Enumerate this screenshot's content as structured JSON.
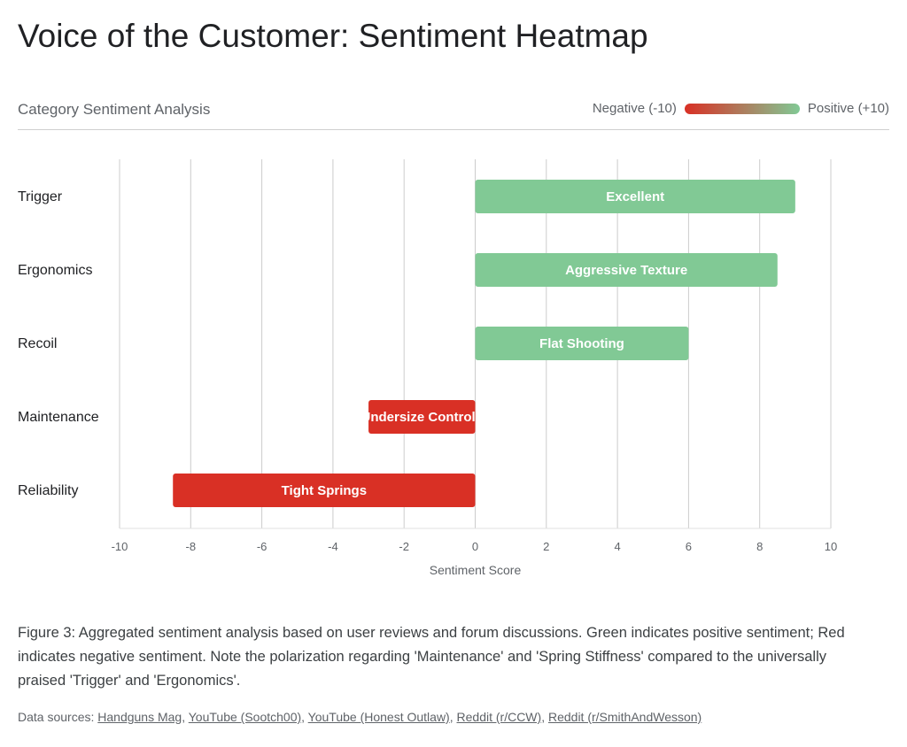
{
  "title": "Voice of the Customer: Sentiment Heatmap",
  "subtitle": "Category Sentiment Analysis",
  "legend": {
    "negative_label": "Negative (-10)",
    "positive_label": "Positive (+10)"
  },
  "colors": {
    "positive": "#81c995",
    "negative": "#d93025",
    "grid": "#cccccc"
  },
  "chart_data": {
    "type": "bar",
    "orientation": "horizontal",
    "categories": [
      "Trigger",
      "Ergonomics",
      "Recoil",
      "Maintenance",
      "Reliability"
    ],
    "values": [
      9,
      8.5,
      6,
      -3,
      -8.5
    ],
    "bar_labels": [
      "Excellent",
      "Aggressive Texture",
      "Flat Shooting",
      "Undersize Controls",
      "Tight Springs"
    ],
    "xlabel": "Sentiment Score",
    "xlim": [
      -10,
      10
    ],
    "xticks": [
      -10,
      -8,
      -6,
      -4,
      -2,
      0,
      2,
      4,
      6,
      8,
      10
    ],
    "grid": true
  },
  "caption": "Figure 3: Aggregated sentiment analysis based on user reviews and forum discussions. Green indicates positive sentiment; Red indicates negative sentiment. Note the polarization regarding 'Maintenance' and 'Spring Stiffness' compared to the universally praised 'Trigger' and 'Ergonomics'.",
  "sources": {
    "label": "Data sources:",
    "links": [
      "Handguns Mag",
      "YouTube (Sootch00)",
      "YouTube (Honest Outlaw)",
      "Reddit (r/CCW)",
      "Reddit (r/SmithAndWesson)"
    ]
  }
}
